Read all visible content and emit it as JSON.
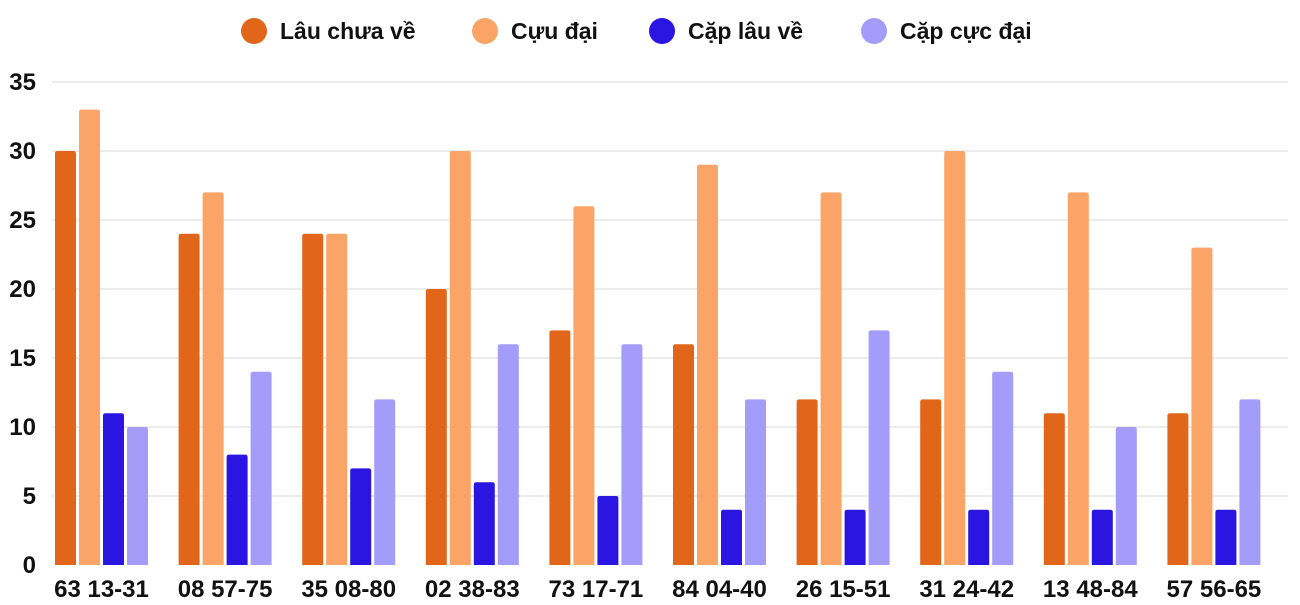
{
  "chart_data": {
    "type": "bar",
    "title": "",
    "xlabel": "",
    "ylabel": "",
    "ylim": [
      0,
      35
    ],
    "yticks": [
      0,
      5,
      10,
      15,
      20,
      25,
      30,
      35
    ],
    "grid": "horizontal",
    "legend_position": "top-center",
    "categories": [
      "63 13-31",
      "08 57-75",
      "35 08-80",
      "02 38-83",
      "73 17-71",
      "84 04-40",
      "26 15-51",
      "31 24-42",
      "13 48-84",
      "57 56-65"
    ],
    "series": [
      {
        "name": "Lâu chưa về",
        "color": "#E2661A",
        "values": [
          30,
          24,
          24,
          20,
          17,
          16,
          12,
          12,
          11,
          11
        ]
      },
      {
        "name": "Cựu đại",
        "color": "#FBA468",
        "values": [
          33,
          27,
          24,
          30,
          26,
          29,
          27,
          30,
          27,
          23
        ]
      },
      {
        "name": "Cặp lâu về",
        "color": "#2A16E0",
        "values": [
          11,
          8,
          7,
          6,
          5,
          4,
          4,
          4,
          4,
          4
        ]
      },
      {
        "name": "Cặp cực đại",
        "color": "#A39CF9",
        "values": [
          10,
          14,
          12,
          16,
          16,
          12,
          17,
          14,
          10,
          12
        ]
      }
    ]
  }
}
